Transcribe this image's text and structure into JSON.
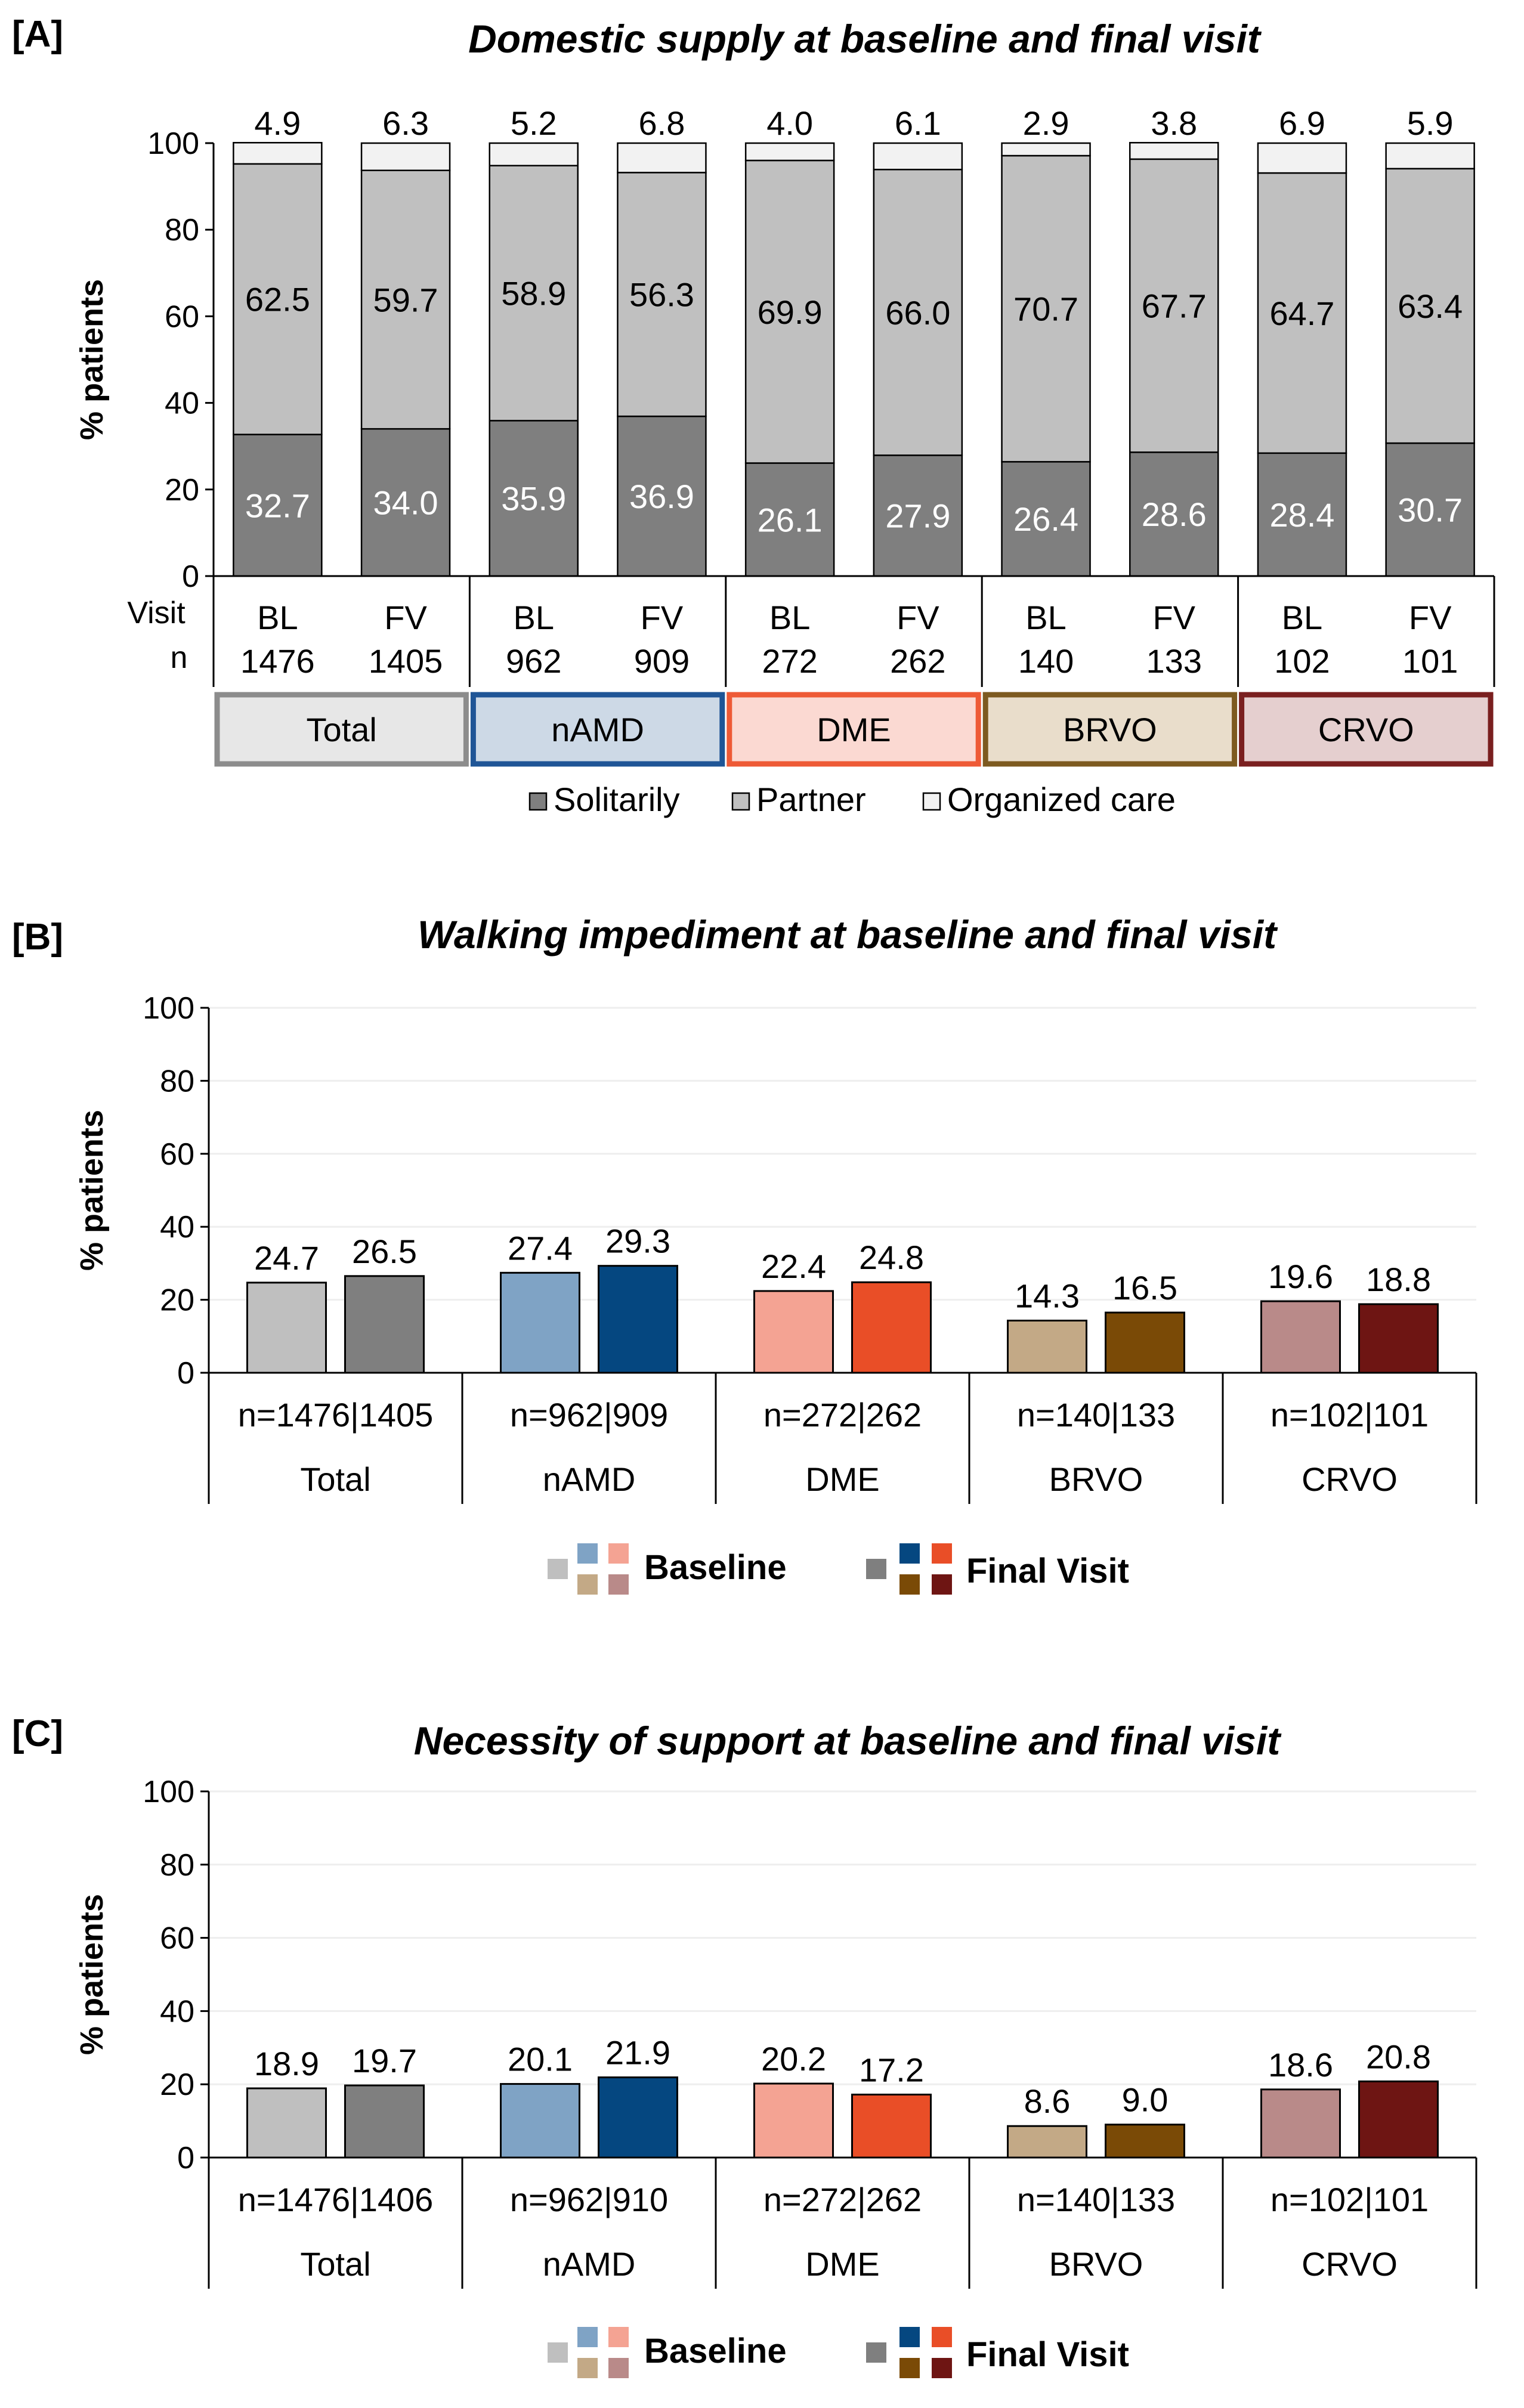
{
  "chart_data": [
    {
      "panel": "[A]",
      "type": "bar",
      "stacked": true,
      "title": "Domestic supply at baseline and final visit",
      "ylabel": "% patients",
      "ylim": [
        0,
        100
      ],
      "yticks": [
        "0",
        "20",
        "40",
        "60",
        "80",
        "100"
      ],
      "row_labels": [
        "Visit",
        "n"
      ],
      "categories": [
        {
          "visit": "BL",
          "n": "1476"
        },
        {
          "visit": "FV",
          "n": "1405"
        },
        {
          "visit": "BL",
          "n": "962"
        },
        {
          "visit": "FV",
          "n": "909"
        },
        {
          "visit": "BL",
          "n": "272"
        },
        {
          "visit": "FV",
          "n": "262"
        },
        {
          "visit": "BL",
          "n": "140"
        },
        {
          "visit": "FV",
          "n": "133"
        },
        {
          "visit": "BL",
          "n": "102"
        },
        {
          "visit": "FV",
          "n": "101"
        }
      ],
      "groups": [
        {
          "label": "Total",
          "fill": "#e7e7e7",
          "border": "#8c8c8c"
        },
        {
          "label": "nAMD",
          "fill": "#cdd9e6",
          "border": "#1f5596"
        },
        {
          "label": "DME",
          "fill": "#fbd9d2",
          "border": "#ee5a36"
        },
        {
          "label": "BRVO",
          "fill": "#e9ddcb",
          "border": "#7d5a20"
        },
        {
          "label": "CRVO",
          "fill": "#e5cfcf",
          "border": "#7a1f1f"
        }
      ],
      "series": [
        {
          "name": "Solitarily",
          "color": "#7f7f7f",
          "values": [
            32.7,
            34.0,
            35.9,
            36.9,
            26.1,
            27.9,
            26.4,
            28.6,
            28.4,
            30.7
          ],
          "labels": [
            "32.7",
            "34.0",
            "35.9",
            "36.9",
            "26.1",
            "27.9",
            "26.4",
            "28.6",
            "28.4",
            "30.7"
          ]
        },
        {
          "name": "Partner",
          "color": "#c0c0c0",
          "values": [
            62.5,
            59.7,
            58.9,
            56.3,
            69.9,
            66.0,
            70.7,
            67.7,
            64.7,
            63.4
          ],
          "labels": [
            "62.5",
            "59.7",
            "58.9",
            "56.3",
            "69.9",
            "66.0",
            "70.7",
            "67.7",
            "64.7",
            "63.4"
          ]
        },
        {
          "name": "Organized care",
          "color": "#f2f2f2",
          "values": [
            4.9,
            6.3,
            5.2,
            6.8,
            4.0,
            6.1,
            2.9,
            3.8,
            6.9,
            5.9
          ],
          "labels": [
            "4.9",
            "6.3",
            "5.2",
            "6.8",
            "4.0",
            "6.1",
            "2.9",
            "3.8",
            "6.9",
            "5.9"
          ]
        }
      ]
    },
    {
      "panel": "[B]",
      "type": "bar",
      "title": "Walking impediment at baseline and final visit",
      "ylabel": "% patients",
      "ylim": [
        0,
        100
      ],
      "yticks": [
        "0",
        "20",
        "40",
        "60",
        "80",
        "100"
      ],
      "groups": [
        {
          "label": "Total",
          "n": "n=1476|1405",
          "baseline": 24.7,
          "final": 26.5,
          "baseline_label": "24.7",
          "final_label": "26.5",
          "baseline_color": "#bfbfbf",
          "final_color": "#7f7f7f"
        },
        {
          "label": "nAMD",
          "n": "n=962|909",
          "baseline": 27.4,
          "final": 29.3,
          "baseline_label": "27.4",
          "final_label": "29.3",
          "baseline_color": "#7fa3c5",
          "final_color": "#054780"
        },
        {
          "label": "DME",
          "n": "n=272|262",
          "baseline": 22.4,
          "final": 24.8,
          "baseline_label": "22.4",
          "final_label": "24.8",
          "baseline_color": "#f4a393",
          "final_color": "#e94e27"
        },
        {
          "label": "BRVO",
          "n": "n=140|133",
          "baseline": 14.3,
          "final": 16.5,
          "baseline_label": "14.3",
          "final_label": "16.5",
          "baseline_color": "#c3a986",
          "final_color": "#7a4a06"
        },
        {
          "label": "CRVO",
          "n": "n=102|101",
          "baseline": 19.6,
          "final": 18.8,
          "baseline_label": "19.6",
          "final_label": "18.8",
          "baseline_color": "#b98a89",
          "final_color": "#6e1513"
        }
      ],
      "legend": [
        "Baseline",
        "Final Visit"
      ]
    },
    {
      "panel": "[C]",
      "type": "bar",
      "title": "Necessity of support at baseline and final visit",
      "ylabel": "% patients",
      "ylim": [
        0,
        100
      ],
      "yticks": [
        "0",
        "20",
        "40",
        "60",
        "80",
        "100"
      ],
      "groups": [
        {
          "label": "Total",
          "n": "n=1476|1406",
          "baseline": 18.9,
          "final": 19.7,
          "baseline_label": "18.9",
          "final_label": "19.7",
          "baseline_color": "#bfbfbf",
          "final_color": "#7f7f7f"
        },
        {
          "label": "nAMD",
          "n": "n=962|910",
          "baseline": 20.1,
          "final": 21.9,
          "baseline_label": "20.1",
          "final_label": "21.9",
          "baseline_color": "#7fa3c5",
          "final_color": "#054780"
        },
        {
          "label": "DME",
          "n": "n=272|262",
          "baseline": 20.2,
          "final": 17.2,
          "baseline_label": "20.2",
          "final_label": "17.2",
          "baseline_color": "#f4a393",
          "final_color": "#e94e27"
        },
        {
          "label": "BRVO",
          "n": "n=140|133",
          "baseline": 8.6,
          "final": 9.0,
          "baseline_label": "8.6",
          "final_label": "9.0",
          "baseline_color": "#c3a986",
          "final_color": "#7a4a06"
        },
        {
          "label": "CRVO",
          "n": "n=102|101",
          "baseline": 18.6,
          "final": 20.8,
          "baseline_label": "18.6",
          "final_label": "20.8",
          "baseline_color": "#b98a89",
          "final_color": "#6e1513"
        }
      ],
      "legend": [
        "Baseline",
        "Final Visit"
      ]
    }
  ]
}
